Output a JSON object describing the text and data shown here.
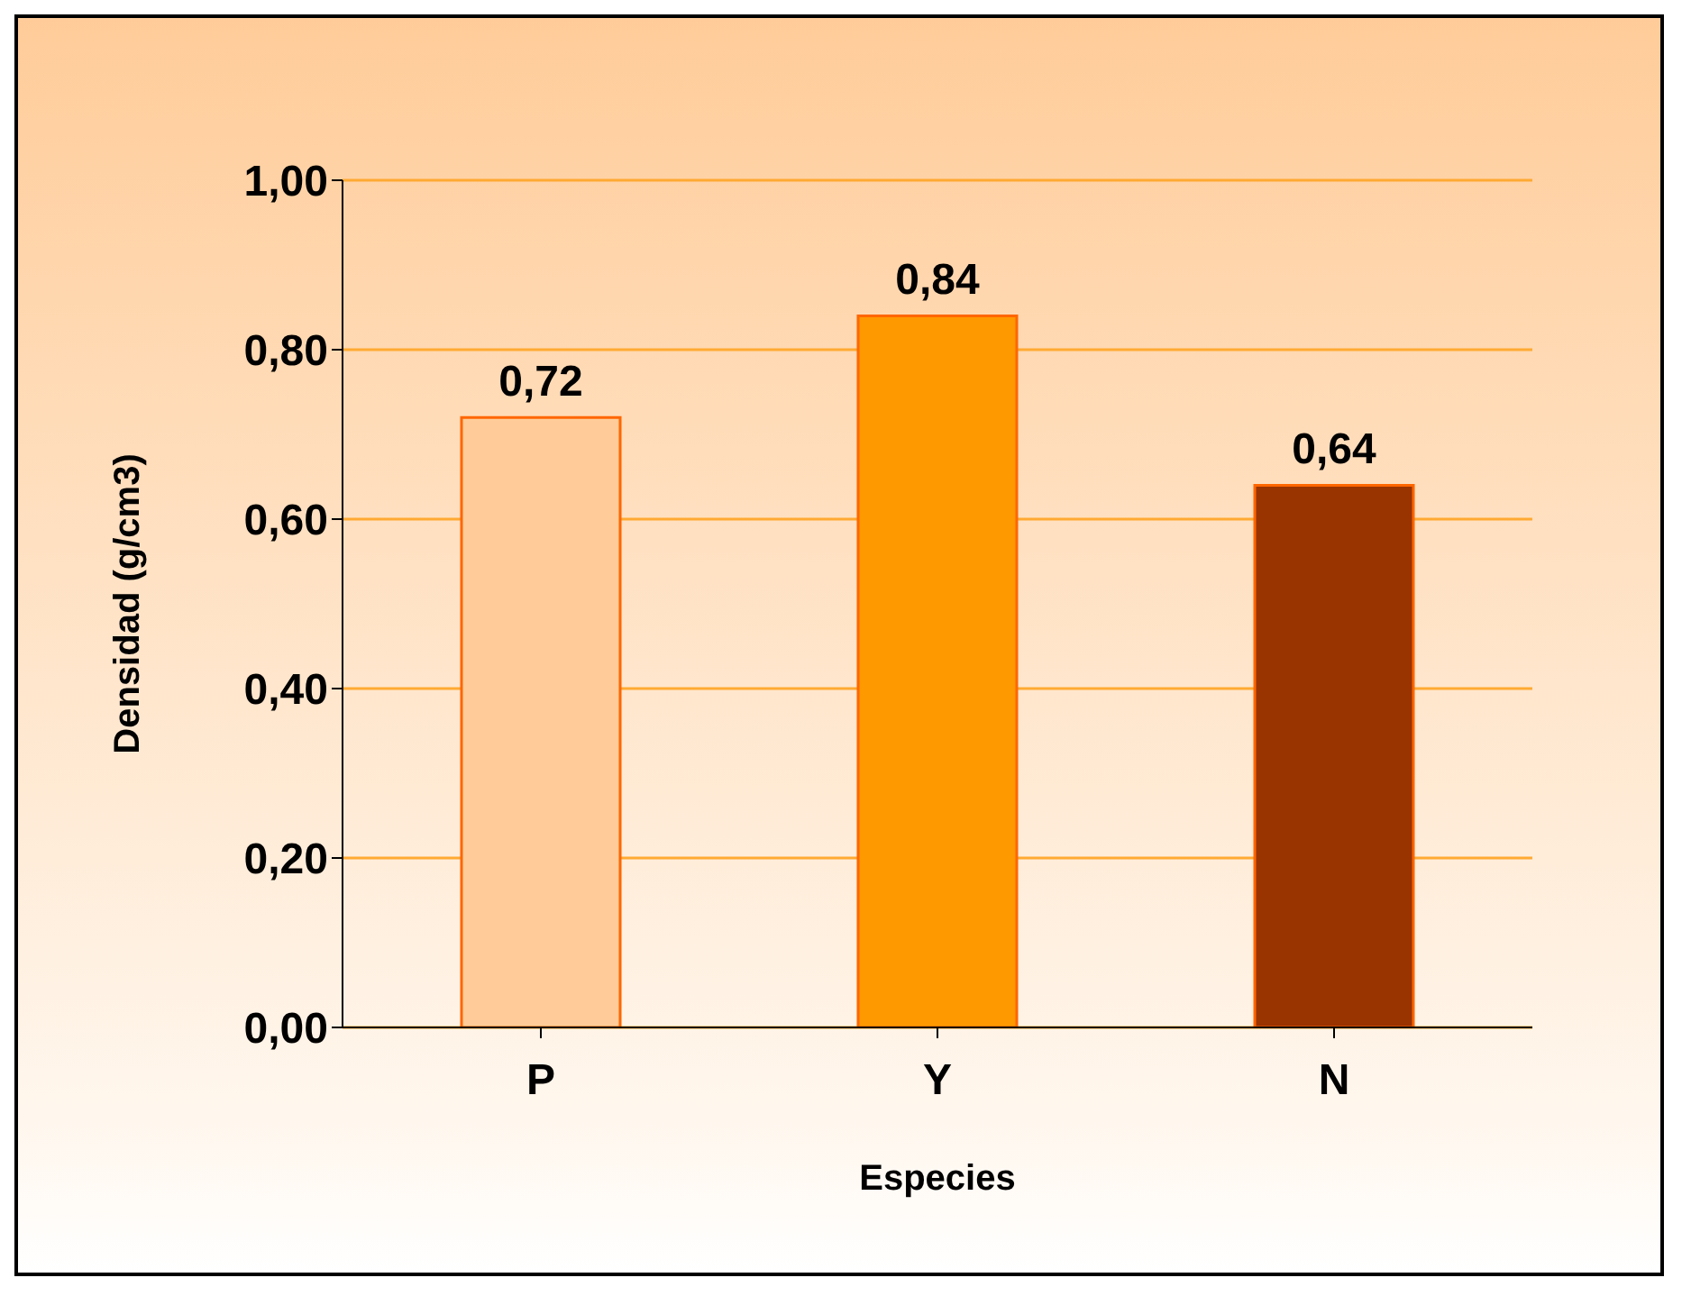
{
  "chart_data": {
    "type": "bar",
    "xlabel": "Especies",
    "ylabel": "Densidad (g/cm3)",
    "categories": [
      "P",
      "Y",
      "N"
    ],
    "values": [
      0.72,
      0.84,
      0.64
    ],
    "colors": [
      "#ffcc99",
      "#ff9900",
      "#993300"
    ],
    "value_labels": [
      "0,72",
      "0,84",
      "0,64"
    ],
    "ylim": [
      0,
      1
    ],
    "yticks": [
      {
        "value": 0,
        "label": "0,00"
      },
      {
        "value": 0.2,
        "label": "0,20"
      },
      {
        "value": 0.4,
        "label": "0,40"
      },
      {
        "value": 0.6,
        "label": "0,60"
      },
      {
        "value": 0.8,
        "label": "0,80"
      },
      {
        "value": 1,
        "label": "1,00"
      }
    ],
    "grid": "y"
  }
}
